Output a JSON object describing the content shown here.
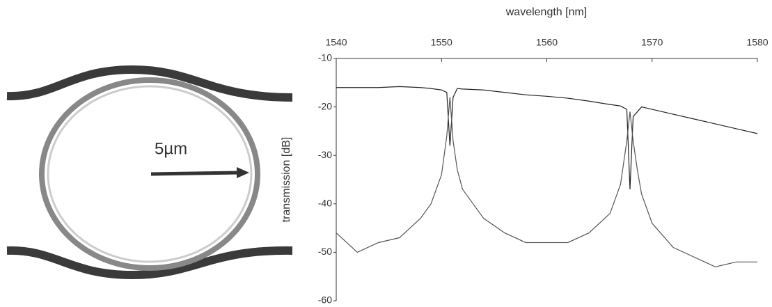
{
  "image": {
    "scale_label": "5µm"
  },
  "chart_data": {
    "type": "line",
    "xlabel": "wavelength [nm]",
    "ylabel": "transmission [dB]",
    "x": [
      1540,
      1542,
      1544,
      1546,
      1548,
      1549,
      1550,
      1550.5,
      1550.8,
      1551.1,
      1551.5,
      1552,
      1554,
      1556,
      1558,
      1560,
      1562,
      1564,
      1566,
      1567,
      1567.6,
      1567.9,
      1568.2,
      1568.6,
      1569,
      1570,
      1572,
      1574,
      1576,
      1578,
      1580
    ],
    "series": [
      {
        "color": "#222222",
        "values": [
          -16,
          -16,
          -16,
          -15.8,
          -16,
          -16.2,
          -16.5,
          -17,
          -28,
          -18,
          -16.2,
          -16.3,
          -16.5,
          -17,
          -17.5,
          -17.8,
          -18.2,
          -18.8,
          -19.5,
          -19.8,
          -20.5,
          -37,
          -22,
          -21,
          -20,
          -20.5,
          -21.5,
          -22.5,
          -23.5,
          -24.5,
          -25.5
        ]
      },
      {
        "color": "#555555",
        "values": [
          -46,
          -50,
          -48,
          -47,
          -43,
          -40,
          -34,
          -26,
          -18,
          -27,
          -33,
          -37,
          -43,
          -46,
          -48,
          -48,
          -48,
          -46,
          -42,
          -36,
          -27,
          -21,
          -27,
          -33,
          -38,
          -44,
          -49,
          -51,
          -53,
          -52,
          -52
        ]
      }
    ],
    "xlim": [
      1540,
      1580
    ],
    "xticks": [
      1540,
      1550,
      1560,
      1570,
      1580
    ],
    "ylim": [
      -60,
      -10
    ],
    "yticks": [
      -60,
      -50,
      -40,
      -30,
      -20,
      -10
    ],
    "grid": false
  }
}
